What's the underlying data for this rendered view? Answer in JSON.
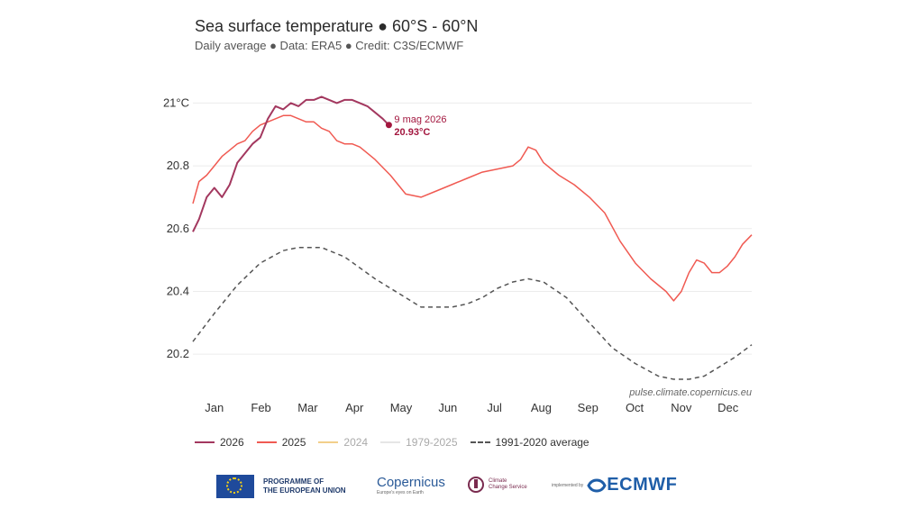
{
  "header": {
    "title": "Sea surface temperature ● 60°S - 60°N",
    "subtitle": "Daily average ● Data: ERA5 ● Credit: C3S/ECMWF"
  },
  "colors": {
    "s2026": "#a3385f",
    "s2025": "#f05a52",
    "s2024": "#f2cf8a",
    "s1979_2025": "#e6e6e6",
    "avg": "#555555",
    "annotation": "#a3173f"
  },
  "chart_data": {
    "type": "line",
    "title": "Sea surface temperature ● 60°S - 60°N",
    "subtitle": "Daily average ● Data: ERA5 ● Credit: C3S/ECMWF",
    "xlabel": "",
    "ylabel": "",
    "x_tick_labels": [
      "Jan",
      "Feb",
      "Mar",
      "Apr",
      "May",
      "Jun",
      "Jul",
      "Aug",
      "Sep",
      "Oct",
      "Nov",
      "Dec"
    ],
    "y_ticks": [
      20.2,
      20.4,
      20.6,
      20.8,
      21.0
    ],
    "y_tick_labels": [
      "20.2",
      "20.4",
      "20.6",
      "20.8",
      "21°C"
    ],
    "ylim": [
      20.1,
      21.07
    ],
    "xlim": [
      1,
      366
    ],
    "grid": "horizontal",
    "legend_position": "bottom",
    "watermark": "pulse.climate.copernicus.eu",
    "annotation": {
      "date_label": "9 mag 2026",
      "value_label": "20.93°C",
      "day": 129,
      "value": 20.93
    },
    "series": [
      {
        "name": "2026",
        "style": "solid",
        "color": "#a3385f",
        "x": [
          1,
          5,
          10,
          15,
          20,
          25,
          30,
          35,
          40,
          45,
          50,
          55,
          60,
          65,
          70,
          75,
          80,
          85,
          90,
          95,
          100,
          105,
          110,
          115,
          120,
          125,
          129
        ],
        "y": [
          20.59,
          20.63,
          20.7,
          20.73,
          20.7,
          20.74,
          20.81,
          20.84,
          20.87,
          20.89,
          20.95,
          20.99,
          20.98,
          21.0,
          20.99,
          21.01,
          21.01,
          21.02,
          21.01,
          21.0,
          21.01,
          21.01,
          21.0,
          20.99,
          20.97,
          20.95,
          20.93
        ]
      },
      {
        "name": "2025",
        "style": "solid",
        "color": "#f05a52",
        "x": [
          1,
          5,
          10,
          15,
          20,
          25,
          30,
          35,
          40,
          45,
          50,
          55,
          60,
          65,
          70,
          75,
          80,
          85,
          90,
          95,
          100,
          105,
          110,
          115,
          120,
          130,
          140,
          150,
          160,
          170,
          180,
          190,
          200,
          210,
          215,
          220,
          225,
          230,
          240,
          250,
          260,
          270,
          280,
          290,
          300,
          310,
          315,
          320,
          325,
          330,
          335,
          340,
          345,
          350,
          355,
          360,
          366
        ],
        "y": [
          20.68,
          20.75,
          20.77,
          20.8,
          20.83,
          20.85,
          20.87,
          20.88,
          20.91,
          20.93,
          20.94,
          20.95,
          20.96,
          20.96,
          20.95,
          20.94,
          20.94,
          20.92,
          20.91,
          20.88,
          20.87,
          20.87,
          20.86,
          20.84,
          20.82,
          20.77,
          20.71,
          20.7,
          20.72,
          20.74,
          20.76,
          20.78,
          20.79,
          20.8,
          20.82,
          20.86,
          20.85,
          20.81,
          20.77,
          20.74,
          20.7,
          20.65,
          20.56,
          20.49,
          20.44,
          20.4,
          20.37,
          20.4,
          20.46,
          20.5,
          20.49,
          20.46,
          20.46,
          20.48,
          20.51,
          20.55,
          20.58
        ]
      },
      {
        "name": "2024",
        "style": "solid",
        "color": "#f2cf8a",
        "x": [],
        "y": []
      },
      {
        "name": "1979-2025",
        "style": "solid",
        "color": "#e6e6e6",
        "x": [],
        "y": []
      },
      {
        "name": "1991-2020 average",
        "style": "dashed",
        "color": "#555555",
        "x": [
          1,
          15,
          30,
          45,
          60,
          70,
          85,
          100,
          120,
          140,
          150,
          160,
          170,
          180,
          190,
          200,
          210,
          220,
          230,
          245,
          260,
          275,
          290,
          305,
          315,
          325,
          335,
          345,
          355,
          366
        ],
        "y": [
          20.24,
          20.33,
          20.42,
          20.49,
          20.53,
          20.54,
          20.54,
          20.51,
          20.44,
          20.38,
          20.35,
          20.35,
          20.35,
          20.36,
          20.38,
          20.41,
          20.43,
          20.44,
          20.43,
          20.38,
          20.3,
          20.22,
          20.17,
          20.13,
          20.12,
          20.12,
          20.13,
          20.16,
          20.19,
          20.23
        ]
      }
    ]
  },
  "logos": {
    "eu_line1": "PROGRAMME OF",
    "eu_line2": "THE EUROPEAN UNION",
    "copernicus": "Copernicus",
    "copernicus_sub": "Europe's eyes on Earth",
    "c3s_line1": "Climate",
    "c3s_line2": "Change Service",
    "ecmwf_small": "implemented by",
    "ecmwf": "ECMWF"
  }
}
